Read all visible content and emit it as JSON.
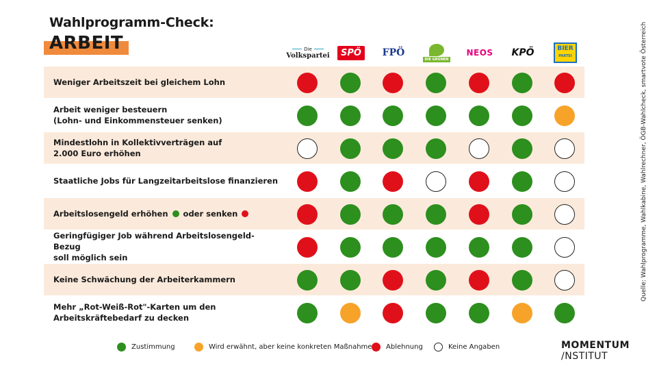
{
  "header": {
    "title": "Wahlprogramm-Check:",
    "topic": "ARBEIT"
  },
  "parties": [
    {
      "name": "Die Volkspartei",
      "small": "Die",
      "main": "Volkspartei"
    },
    {
      "name": "SPÖ"
    },
    {
      "name": "FPÖ"
    },
    {
      "name": "Die Grünen",
      "text": "DIE GRÜNEN"
    },
    {
      "name": "NEOS"
    },
    {
      "name": "KPÖ"
    },
    {
      "name": "Bierpartei",
      "top": "BIER",
      "bottom": "PARTEI"
    }
  ],
  "colors": {
    "zustimmung": "#2d8f1e",
    "wird_erwaehnt": "#f7a329",
    "ablehnung": "#e0101a",
    "keine_angaben": "#ffffff",
    "accent": "#f08a3c",
    "row_shade": "#fbeadb"
  },
  "rows": [
    {
      "label": "Weniger Arbeitszeit bei gleichem Lohn",
      "ratings": [
        "a",
        "z",
        "a",
        "z",
        "a",
        "z",
        "a"
      ]
    },
    {
      "label_line1": "Arbeit weniger besteuern",
      "label_line2": "(Lohn- und Einkommensteuer senken)",
      "ratings": [
        "z",
        "z",
        "z",
        "z",
        "z",
        "z",
        "w"
      ]
    },
    {
      "label_line1": "Mindestlohn in Kollektivverträgen auf",
      "label_line2": "2.000 Euro erhöhen",
      "ratings": [
        "k",
        "z",
        "z",
        "z",
        "k",
        "z",
        "k"
      ]
    },
    {
      "label": "Staatliche Jobs für Langzeitarbeitslose finanzieren",
      "ratings": [
        "a",
        "z",
        "a",
        "k",
        "a",
        "z",
        "k"
      ]
    },
    {
      "label_part1": "Arbeitslosengeld erhöhen",
      "label_part2": "oder senken",
      "ratings": [
        "a",
        "z",
        "z",
        "z",
        "a",
        "z",
        "k"
      ]
    },
    {
      "label_line1": "Geringfügiger Job während Arbeitslosengeld-Bezug",
      "label_line2": "soll möglich sein",
      "ratings": [
        "a",
        "z",
        "z",
        "z",
        "z",
        "z",
        "k"
      ]
    },
    {
      "label": "Keine Schwächung der Arbeiterkammern",
      "ratings": [
        "z",
        "z",
        "a",
        "z",
        "a",
        "z",
        "k"
      ]
    },
    {
      "label_line1": "Mehr „Rot-Weiß-Rot\"-Karten um den",
      "label_line2": "Arbeitskräftebedarf zu decken",
      "ratings": [
        "z",
        "w",
        "a",
        "z",
        "z",
        "w",
        "z"
      ]
    }
  ],
  "legend": {
    "zustimmung": "Zustimmung",
    "wird_erwaehnt": "Wird erwähnt, aber keine konkreten Maßnahmen",
    "ablehnung": "Ablehnung",
    "keine_angaben": "Keine Angaben"
  },
  "source": "Quelle: Wahlprogramme, Wahlkabine, Wahlrechner, ÖGB-Wahlcheck, smartvote Österreich",
  "brand": {
    "line1": "MOMENTUM",
    "line2": "/NSTITUT"
  }
}
